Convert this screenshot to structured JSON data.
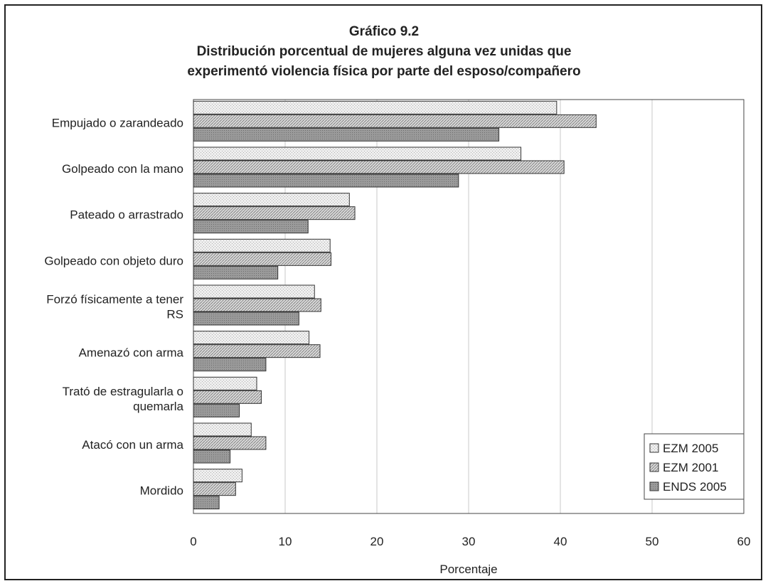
{
  "chart_data": {
    "type": "bar",
    "orientation": "horizontal",
    "title": "Gráfico 9.2",
    "subtitle_lines": [
      "Distribución porcentual de mujeres alguna vez unidas que",
      "experimentó violencia física por parte del esposo/compañero"
    ],
    "xlabel": "Porcentaje",
    "ylabel": "",
    "xlim": [
      0,
      60
    ],
    "xticks": [
      "0",
      "10",
      "20",
      "30",
      "40",
      "50",
      "60"
    ],
    "grid": "vertical",
    "legend_position": "bottom-right",
    "categories": [
      [
        "Empujado o zarandeado"
      ],
      [
        "Golpeado con la mano"
      ],
      [
        "Pateado o arrastrado"
      ],
      [
        "Golpeado con objeto duro"
      ],
      [
        "Forzó físicamente a tener",
        "RS"
      ],
      [
        "Amenazó con arma"
      ],
      [
        "Trató de estragularla o",
        "quemarla"
      ],
      [
        "Atacó con un arma"
      ],
      [
        "Mordido"
      ]
    ],
    "series": [
      {
        "name": "EZM 2005",
        "color": "#e4e4e4",
        "values": [
          39.6,
          35.7,
          17.0,
          14.9,
          13.2,
          12.6,
          6.9,
          6.3,
          5.3
        ]
      },
      {
        "name": "EZM 2001",
        "color": "#bdbdbd",
        "values": [
          43.9,
          40.4,
          17.6,
          15.0,
          13.9,
          13.8,
          7.4,
          7.9,
          4.6
        ]
      },
      {
        "name": "ENDS 2005",
        "color": "#8c8c8c",
        "values": [
          33.3,
          28.9,
          12.5,
          9.2,
          11.5,
          7.9,
          5.0,
          4.0,
          2.8
        ]
      }
    ]
  }
}
